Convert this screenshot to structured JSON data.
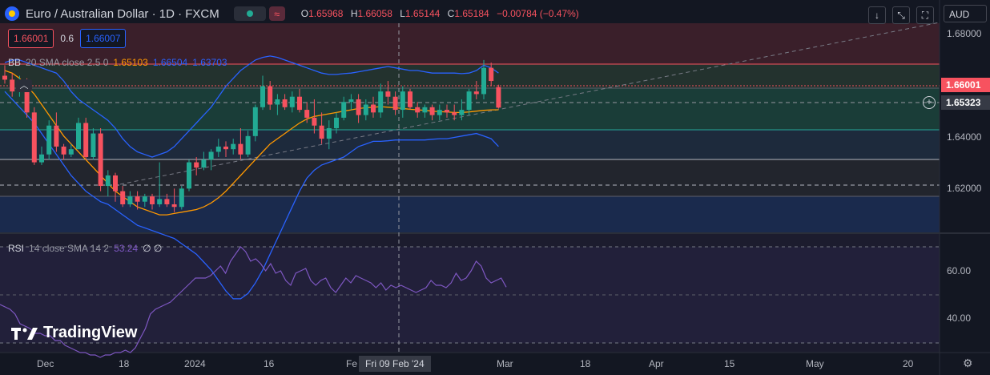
{
  "header": {
    "title": "Euro / Australian Dollar · 1D · FXCM",
    "ohlc": {
      "o_label": "O",
      "o": "1.65968",
      "h_label": "H",
      "h": "1.66058",
      "l_label": "L",
      "l": "1.65144",
      "c_label": "C",
      "c": "1.65184",
      "change": "−0.00784 (−0.47%)"
    }
  },
  "trade": {
    "sell": "1.66001",
    "spread": "0.6",
    "buy": "1.66007"
  },
  "bb_legend": {
    "label": "BB",
    "params": "20 SMA close 2.5 0",
    "basis": "1.65103",
    "upper": "1.66504",
    "lower": "1.63703"
  },
  "rsi_legend": {
    "label": "RSI",
    "params": "14 close SMA 14 2",
    "value": "53.24",
    "extra": "∅ ∅"
  },
  "toolbar": {
    "currency": "AUD"
  },
  "price_axis": {
    "labels": [
      "1.68000",
      "1.64000",
      "1.62000"
    ],
    "current_price": "1.66001",
    "crosshair_price": "1.65323"
  },
  "rsi_axis": {
    "labels": [
      "60.00",
      "40.00"
    ]
  },
  "time_axis": {
    "labels": [
      "Dec",
      "18",
      "2024",
      "16",
      "Fe",
      "Mar",
      "18",
      "Apr",
      "15",
      "May",
      "20"
    ],
    "highlighted": "Fri 09 Feb '24"
  },
  "branding": {
    "logo_text": "TradingView"
  },
  "icons": [
    "down-arrow-icon",
    "collapse-arrows-icon",
    "fullscreen-icon",
    "plus-circle-icon",
    "gear-icon",
    "chevron-up-icon"
  ],
  "colors": {
    "up": "#22ab94",
    "down": "#f7525f",
    "bb_band": "#2962ff",
    "bb_basis": "#ff9800",
    "rsi": "#7e57c2"
  },
  "chart_data": {
    "type": "candlestick",
    "price_range": [
      1.604,
      1.684
    ],
    "candles": [
      {
        "o": 1.664,
        "h": 1.668,
        "l": 1.661,
        "c": 1.6625
      },
      {
        "o": 1.6625,
        "h": 1.665,
        "l": 1.656,
        "c": 1.658
      },
      {
        "o": 1.658,
        "h": 1.664,
        "l": 1.656,
        "c": 1.661
      },
      {
        "o": 1.661,
        "h": 1.663,
        "l": 1.648,
        "c": 1.65
      },
      {
        "o": 1.65,
        "h": 1.652,
        "l": 1.63,
        "c": 1.631
      },
      {
        "o": 1.631,
        "h": 1.637,
        "l": 1.63,
        "c": 1.634
      },
      {
        "o": 1.634,
        "h": 1.647,
        "l": 1.632,
        "c": 1.645
      },
      {
        "o": 1.645,
        "h": 1.65,
        "l": 1.635,
        "c": 1.637
      },
      {
        "o": 1.637,
        "h": 1.638,
        "l": 1.632,
        "c": 1.634
      },
      {
        "o": 1.634,
        "h": 1.638,
        "l": 1.633,
        "c": 1.636
      },
      {
        "o": 1.636,
        "h": 1.648,
        "l": 1.636,
        "c": 1.646
      },
      {
        "o": 1.646,
        "h": 1.648,
        "l": 1.632,
        "c": 1.633
      },
      {
        "o": 1.633,
        "h": 1.644,
        "l": 1.632,
        "c": 1.642
      },
      {
        "o": 1.642,
        "h": 1.644,
        "l": 1.62,
        "c": 1.622
      },
      {
        "o": 1.622,
        "h": 1.628,
        "l": 1.618,
        "c": 1.626
      },
      {
        "o": 1.626,
        "h": 1.627,
        "l": 1.616,
        "c": 1.62
      },
      {
        "o": 1.62,
        "h": 1.622,
        "l": 1.614,
        "c": 1.615
      },
      {
        "o": 1.615,
        "h": 1.62,
        "l": 1.614,
        "c": 1.618
      },
      {
        "o": 1.618,
        "h": 1.62,
        "l": 1.613,
        "c": 1.616
      },
      {
        "o": 1.616,
        "h": 1.619,
        "l": 1.614,
        "c": 1.618
      },
      {
        "o": 1.618,
        "h": 1.619,
        "l": 1.613,
        "c": 1.615
      },
      {
        "o": 1.615,
        "h": 1.631,
        "l": 1.614,
        "c": 1.617
      },
      {
        "o": 1.617,
        "h": 1.619,
        "l": 1.614,
        "c": 1.615
      },
      {
        "o": 1.615,
        "h": 1.621,
        "l": 1.612,
        "c": 1.614
      },
      {
        "o": 1.614,
        "h": 1.622,
        "l": 1.613,
        "c": 1.621
      },
      {
        "o": 1.621,
        "h": 1.632,
        "l": 1.62,
        "c": 1.631
      },
      {
        "o": 1.631,
        "h": 1.633,
        "l": 1.626,
        "c": 1.629
      },
      {
        "o": 1.629,
        "h": 1.635,
        "l": 1.628,
        "c": 1.632
      },
      {
        "o": 1.632,
        "h": 1.636,
        "l": 1.628,
        "c": 1.635
      },
      {
        "o": 1.635,
        "h": 1.64,
        "l": 1.633,
        "c": 1.637
      },
      {
        "o": 1.637,
        "h": 1.639,
        "l": 1.633,
        "c": 1.636
      },
      {
        "o": 1.636,
        "h": 1.64,
        "l": 1.634,
        "c": 1.638
      },
      {
        "o": 1.638,
        "h": 1.644,
        "l": 1.632,
        "c": 1.634
      },
      {
        "o": 1.634,
        "h": 1.643,
        "l": 1.633,
        "c": 1.641
      },
      {
        "o": 1.641,
        "h": 1.653,
        "l": 1.639,
        "c": 1.652
      },
      {
        "o": 1.652,
        "h": 1.664,
        "l": 1.651,
        "c": 1.66
      },
      {
        "o": 1.66,
        "h": 1.662,
        "l": 1.651,
        "c": 1.653
      },
      {
        "o": 1.653,
        "h": 1.657,
        "l": 1.649,
        "c": 1.655
      },
      {
        "o": 1.655,
        "h": 1.657,
        "l": 1.651,
        "c": 1.652
      },
      {
        "o": 1.652,
        "h": 1.658,
        "l": 1.65,
        "c": 1.656
      },
      {
        "o": 1.656,
        "h": 1.659,
        "l": 1.65,
        "c": 1.651
      },
      {
        "o": 1.651,
        "h": 1.654,
        "l": 1.646,
        "c": 1.648
      },
      {
        "o": 1.648,
        "h": 1.655,
        "l": 1.642,
        "c": 1.645
      },
      {
        "o": 1.645,
        "h": 1.65,
        "l": 1.638,
        "c": 1.64
      },
      {
        "o": 1.64,
        "h": 1.647,
        "l": 1.636,
        "c": 1.644
      },
      {
        "o": 1.644,
        "h": 1.65,
        "l": 1.642,
        "c": 1.648
      },
      {
        "o": 1.648,
        "h": 1.656,
        "l": 1.647,
        "c": 1.654
      },
      {
        "o": 1.654,
        "h": 1.657,
        "l": 1.651,
        "c": 1.655
      },
      {
        "o": 1.655,
        "h": 1.657,
        "l": 1.646,
        "c": 1.649
      },
      {
        "o": 1.649,
        "h": 1.655,
        "l": 1.647,
        "c": 1.653
      },
      {
        "o": 1.653,
        "h": 1.656,
        "l": 1.648,
        "c": 1.65
      },
      {
        "o": 1.65,
        "h": 1.661,
        "l": 1.648,
        "c": 1.658
      },
      {
        "o": 1.658,
        "h": 1.662,
        "l": 1.653,
        "c": 1.656
      },
      {
        "o": 1.656,
        "h": 1.658,
        "l": 1.649,
        "c": 1.651
      },
      {
        "o": 1.651,
        "h": 1.66,
        "l": 1.648,
        "c": 1.658
      },
      {
        "o": 1.658,
        "h": 1.659,
        "l": 1.651,
        "c": 1.652
      },
      {
        "o": 1.652,
        "h": 1.654,
        "l": 1.648,
        "c": 1.65
      },
      {
        "o": 1.65,
        "h": 1.653,
        "l": 1.648,
        "c": 1.652
      },
      {
        "o": 1.652,
        "h": 1.653,
        "l": 1.647,
        "c": 1.649
      },
      {
        "o": 1.649,
        "h": 1.653,
        "l": 1.647,
        "c": 1.651
      },
      {
        "o": 1.651,
        "h": 1.653,
        "l": 1.648,
        "c": 1.65
      },
      {
        "o": 1.65,
        "h": 1.653,
        "l": 1.647,
        "c": 1.649
      },
      {
        "o": 1.649,
        "h": 1.655,
        "l": 1.647,
        "c": 1.651
      },
      {
        "o": 1.651,
        "h": 1.659,
        "l": 1.649,
        "c": 1.658
      },
      {
        "o": 1.658,
        "h": 1.662,
        "l": 1.655,
        "c": 1.657
      },
      {
        "o": 1.657,
        "h": 1.67,
        "l": 1.655,
        "c": 1.667
      },
      {
        "o": 1.667,
        "h": 1.669,
        "l": 1.66,
        "c": 1.662
      },
      {
        "o": 1.65968,
        "h": 1.66058,
        "l": 1.65144,
        "c": 1.65184
      }
    ],
    "bb_basis": [
      1.666,
      1.665,
      1.663,
      1.66,
      1.657,
      1.653,
      1.649,
      1.645,
      1.641,
      1.638,
      1.635,
      1.632,
      1.629,
      1.626,
      1.623,
      1.62,
      1.618,
      1.616,
      1.614,
      1.613,
      1.612,
      1.611,
      1.611,
      1.6115,
      1.612,
      1.6125,
      1.613,
      1.614,
      1.6155,
      1.6175,
      1.62,
      1.623,
      1.626,
      1.629,
      1.632,
      1.635,
      1.638,
      1.64,
      1.642,
      1.644,
      1.646,
      1.6475,
      1.6485,
      1.649,
      1.6495,
      1.65,
      1.6505,
      1.651,
      1.6515,
      1.6518,
      1.652,
      1.6522,
      1.652,
      1.6518,
      1.6515,
      1.6512,
      1.651,
      1.6508,
      1.6505,
      1.6503,
      1.6502,
      1.65,
      1.65,
      1.6502,
      1.6505,
      1.6508,
      1.651,
      1.65103
    ],
    "bb_upper": [
      1.669,
      1.67,
      1.67,
      1.669,
      1.668,
      1.667,
      1.666,
      1.665,
      1.662,
      1.658,
      1.655,
      1.653,
      1.651,
      1.649,
      1.647,
      1.644,
      1.64,
      1.637,
      1.635,
      1.634,
      1.633,
      1.634,
      1.635,
      1.637,
      1.64,
      1.643,
      1.646,
      1.649,
      1.652,
      1.656,
      1.66,
      1.663,
      1.666,
      1.668,
      1.67,
      1.671,
      1.6715,
      1.671,
      1.67,
      1.669,
      1.668,
      1.667,
      1.666,
      1.665,
      1.6645,
      1.6645,
      1.6648,
      1.665,
      1.6655,
      1.666,
      1.6665,
      1.667,
      1.6675,
      1.667,
      1.6665,
      1.666,
      1.666,
      1.6655,
      1.665,
      1.665,
      1.665,
      1.665,
      1.6648,
      1.665,
      1.666,
      1.668,
      1.667,
      1.66504
    ],
    "bb_lower": [
      1.658,
      1.655,
      1.652,
      1.649,
      1.646,
      1.642,
      1.638,
      1.634,
      1.63,
      1.626,
      1.623,
      1.62,
      1.618,
      1.616,
      1.615,
      1.613,
      1.611,
      1.609,
      1.607,
      1.606,
      1.605,
      1.604,
      1.603,
      1.602,
      1.6,
      1.598,
      1.596,
      1.593,
      1.59,
      1.586,
      1.582,
      1.579,
      1.579,
      1.581,
      1.585,
      1.59,
      1.596,
      1.602,
      1.608,
      1.614,
      1.62,
      1.625,
      1.628,
      1.63,
      1.631,
      1.632,
      1.633,
      1.635,
      1.637,
      1.638,
      1.639,
      1.639,
      1.6392,
      1.6395,
      1.6395,
      1.6395,
      1.6395,
      1.6395,
      1.6398,
      1.64,
      1.64,
      1.6405,
      1.641,
      1.6415,
      1.642,
      1.641,
      1.64,
      1.63703
    ],
    "rsi": [
      46,
      45,
      44,
      42,
      38,
      37,
      36,
      34,
      34,
      33,
      33,
      31,
      31,
      29,
      28,
      27,
      26,
      26,
      25,
      25,
      24,
      25,
      25,
      26,
      26,
      27,
      26,
      28,
      32,
      36,
      42,
      44,
      45,
      46,
      47,
      49,
      51,
      53,
      55,
      57,
      57,
      57,
      58,
      60,
      62,
      59,
      64,
      67,
      70,
      68,
      64,
      65,
      63,
      60,
      63,
      59,
      60,
      56,
      54,
      59,
      60,
      61,
      56,
      54,
      56,
      57,
      53,
      51,
      54,
      57,
      55,
      58,
      57,
      56,
      55,
      53,
      55,
      52,
      54,
      53,
      54,
      53,
      52,
      51,
      52,
      53,
      56,
      54,
      54,
      53,
      55,
      59,
      56,
      57,
      60,
      64,
      62,
      57,
      55,
      56,
      57,
      53.24
    ],
    "rsi_range": [
      28,
      74
    ]
  }
}
